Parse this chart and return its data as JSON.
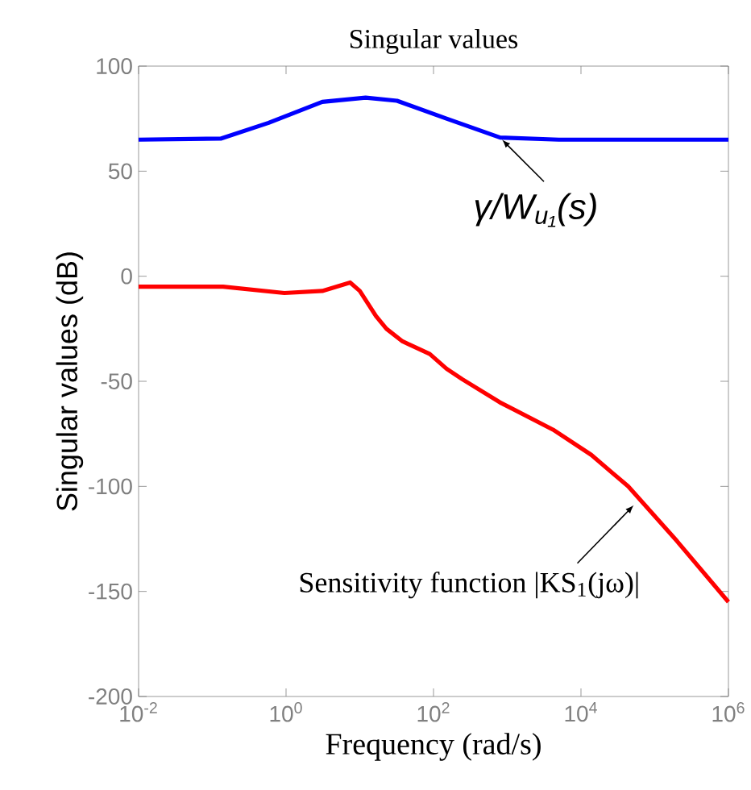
{
  "chart_data": {
    "type": "line",
    "title": "Singular values",
    "xlabel": "Frequency (rad/s)",
    "ylabel": "Singular values (dB)",
    "log": "x",
    "xlim": [
      0.01,
      1000000
    ],
    "ylim": [
      -200,
      100
    ],
    "xticks": [
      {
        "value": 0.01,
        "label": "10$^{-2}$"
      },
      {
        "value": 1,
        "label": "10$^{0}$"
      },
      {
        "value": 100,
        "label": "10$^{2}$"
      },
      {
        "value": 10000,
        "label": "10$^{4}$"
      },
      {
        "value": 1000000,
        "label": "10$^{6}$"
      }
    ],
    "yticks": [
      -200,
      -150,
      -100,
      -50,
      0,
      50,
      100
    ],
    "series": [
      {
        "color": "#0000ff",
        "x": [
          0.01,
          0.13,
          0.58,
          3.1,
          12,
          32,
          150,
          800,
          5000,
          1000000
        ],
        "values": [
          65,
          65.5,
          73,
          83,
          85,
          83.5,
          75,
          66,
          65,
          65
        ]
      },
      {
        "color": "#ff0000",
        "x": [
          0.01,
          0.14,
          0.95,
          3.1,
          7.4,
          10,
          16.6,
          23,
          38,
          89,
          150,
          245,
          794,
          4170,
          13800,
          43650,
          200000,
          1000000
        ],
        "values": [
          -5,
          -5,
          -8,
          -7,
          -3,
          -7,
          -19,
          -25,
          -31,
          -37,
          -44,
          -49,
          -60,
          -73,
          -85,
          -100,
          -126,
          -155
        ]
      }
    ],
    "annotations": [
      {
        "text": "γ/W$_{u₁}$(s)",
        "x": 850,
        "y": 65
      },
      {
        "text": "Sensitivity function |KS$_{1}$(jω)|",
        "x": 52000,
        "y": -109
      }
    ]
  }
}
